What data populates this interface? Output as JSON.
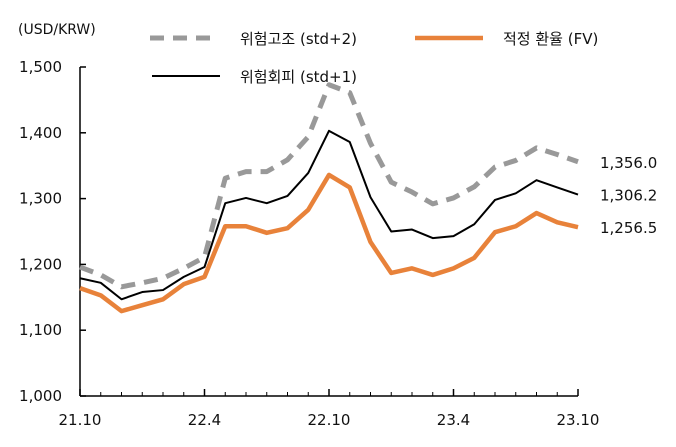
{
  "chart_data": {
    "type": "line",
    "unit_label": "(USD/KRW)",
    "x": [
      "21.10",
      "21.11",
      "21.12",
      "22.1",
      "22.2",
      "22.3",
      "22.4",
      "22.5",
      "22.6",
      "22.7",
      "22.8",
      "22.9",
      "22.10",
      "22.11",
      "22.12",
      "23.1",
      "23.2",
      "23.3",
      "23.4",
      "23.5",
      "23.6",
      "23.7",
      "23.8",
      "23.9",
      "23.10"
    ],
    "xtick_labels": [
      "21.10",
      "22.4",
      "22.10",
      "23.4",
      "23.10"
    ],
    "ylim": [
      1000,
      1500
    ],
    "ytick_labels": [
      "1,000",
      "1,100",
      "1,200",
      "1,300",
      "1,400",
      "1,500"
    ],
    "grid": false,
    "legend": "top",
    "series": [
      {
        "name": "위험고조 (std+2)",
        "color": "#999999",
        "style": "dashed",
        "end_label": "1,356.0",
        "values": [
          1196,
          1184,
          1166,
          1172,
          1179,
          1194,
          1211,
          1331,
          1341,
          1341,
          1359,
          1394,
          1473,
          1461,
          1384,
          1325,
          1310,
          1292,
          1301,
          1318,
          1348,
          1358,
          1377,
          1367,
          1356.0
        ]
      },
      {
        "name": "적정 환율 (FV)",
        "color": "#E8823A",
        "style": "solid",
        "end_label": "1,256.5",
        "values": [
          1164,
          1153,
          1129,
          1138,
          1147,
          1170,
          1181,
          1258,
          1258,
          1248,
          1255,
          1283,
          1336,
          1317,
          1234,
          1187,
          1194,
          1184,
          1194,
          1210,
          1249,
          1258,
          1278,
          1264,
          1256.5
        ]
      },
      {
        "name": "위험회피 (std+1)",
        "color": "#000000",
        "style": "solid",
        "end_label": "1,306.2",
        "values": [
          1179,
          1172,
          1147,
          1158,
          1161,
          1181,
          1196,
          1293,
          1301,
          1293,
          1304,
          1339,
          1403,
          1386,
          1302,
          1250,
          1253,
          1240,
          1243,
          1261,
          1298,
          1308,
          1328,
          1317,
          1306.2
        ]
      }
    ]
  }
}
